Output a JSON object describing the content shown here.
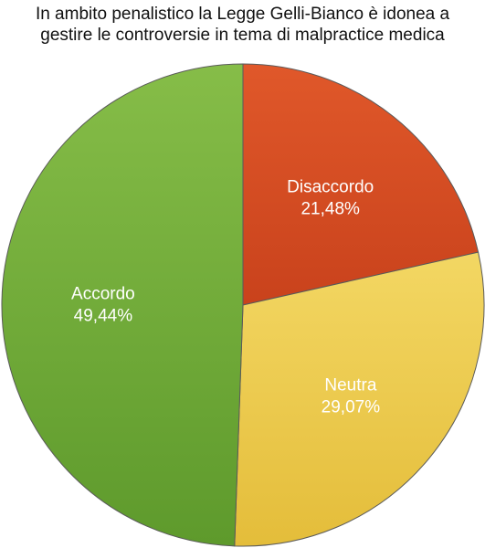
{
  "chart_data": {
    "type": "pie",
    "title_lines": [
      "In ambito penalistico la Legge Gelli-Bianco è idonea a",
      "gestire le controversie in tema di malpractice medica"
    ],
    "slices": [
      {
        "name": "Disaccordo",
        "value": 21.48,
        "label": "21,48%",
        "color": "#c9421c",
        "color_light": "#e0582a"
      },
      {
        "name": "Neutra",
        "value": 29.07,
        "label": "29,07%",
        "color": "#e4bd3a",
        "color_light": "#f3d763"
      },
      {
        "name": "Accordo",
        "value": 49.44,
        "label": "49,44%",
        "color": "#5e9a2c",
        "color_light": "#86bd48"
      }
    ],
    "start_angle_deg": 0,
    "direction": "clockwise",
    "legend": "none"
  }
}
